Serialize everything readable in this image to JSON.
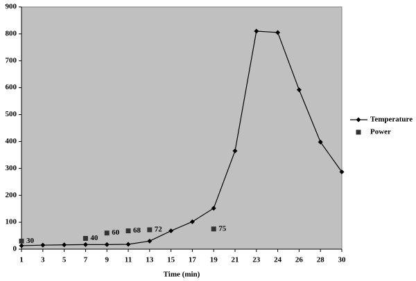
{
  "chart_data": {
    "type": "line",
    "x_label": "Time (min)",
    "categories": [
      "1",
      "3",
      "5",
      "7",
      "9",
      "11",
      "13",
      "15",
      "17",
      "19",
      "21",
      "23",
      "24",
      "26",
      "28",
      "30"
    ],
    "series": [
      {
        "name": "Temperature",
        "color": "#000000",
        "marker": "diamond",
        "line": true,
        "values": [
          13,
          15,
          16,
          17,
          17,
          18,
          30,
          68,
          102,
          152,
          365,
          810,
          805,
          592,
          398,
          287
        ]
      },
      {
        "name": "Power",
        "color": "#333333",
        "marker": "square",
        "line": false,
        "data_labels": true,
        "values": [
          30,
          null,
          null,
          40,
          60,
          68,
          72,
          null,
          null,
          75,
          null,
          null,
          null,
          null,
          null,
          null
        ]
      }
    ],
    "ylim": [
      0,
      900
    ],
    "yticks": [
      0,
      100,
      200,
      300,
      400,
      500,
      600,
      700,
      800,
      900
    ],
    "plot_background": "#c0c0c0",
    "legend": "right"
  }
}
